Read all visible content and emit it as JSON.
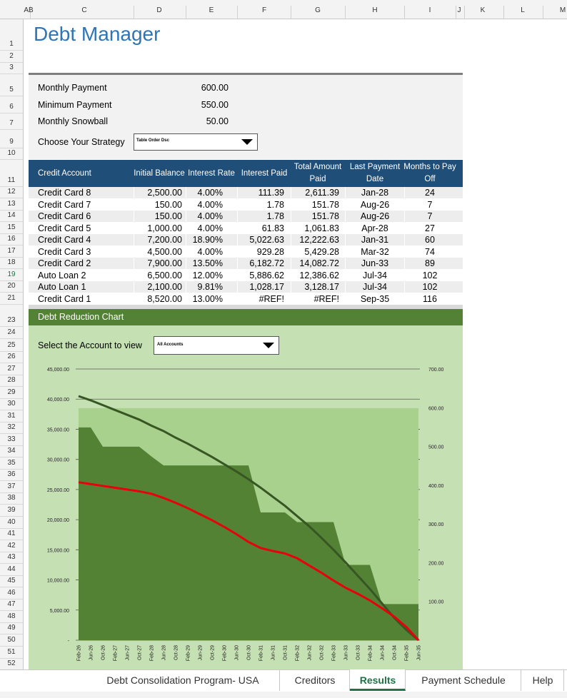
{
  "header": {
    "title": "Debt Manager"
  },
  "column_headers": [
    "AB",
    "C",
    "D",
    "E",
    "F",
    "G",
    "H",
    "I",
    "J",
    "K",
    "L",
    "M"
  ],
  "row_numbers": [
    1,
    2,
    3,
    5,
    6,
    7,
    9,
    10,
    11,
    12,
    13,
    14,
    15,
    16,
    17,
    18,
    19,
    20,
    21,
    23,
    24,
    25,
    26,
    27,
    28,
    29,
    30,
    31,
    32,
    33,
    34,
    35,
    36,
    37,
    38,
    39,
    40,
    41,
    42,
    43,
    44,
    45,
    46,
    47,
    48,
    49,
    50,
    51,
    52
  ],
  "settings": [
    {
      "label": "Monthly Payment",
      "value": "600.00"
    },
    {
      "label": "Minimum Payment",
      "value": "550.00"
    },
    {
      "label": "Monthly Snowball",
      "value": "50.00"
    }
  ],
  "strategy": {
    "label": "Choose Your Strategy",
    "selected": "Table Order Dsc"
  },
  "table": {
    "columns": [
      "Credit Account",
      "Initial Balance",
      "Interest Rate",
      "Interest Paid",
      "Total Amount Paid",
      "Last Payment Date",
      "Months to Pay Off"
    ],
    "rows": [
      [
        "Credit Card 8",
        "2,500.00",
        "4.00%",
        "111.39",
        "2,611.39",
        "Jan-28",
        "24"
      ],
      [
        "Credit Card 7",
        "150.00",
        "4.00%",
        "1.78",
        "151.78",
        "Aug-26",
        "7"
      ],
      [
        "Credit Card 6",
        "150.00",
        "4.00%",
        "1.78",
        "151.78",
        "Aug-26",
        "7"
      ],
      [
        "Credit Card 5",
        "1,000.00",
        "4.00%",
        "61.83",
        "1,061.83",
        "Apr-28",
        "27"
      ],
      [
        "Credit Card 4",
        "7,200.00",
        "18.90%",
        "5,022.63",
        "12,222.63",
        "Jan-31",
        "60"
      ],
      [
        "Credit Card 3",
        "4,500.00",
        "4.00%",
        "929.28",
        "5,429.28",
        "Mar-32",
        "74"
      ],
      [
        "Credit Card 2",
        "7,900.00",
        "13.50%",
        "6,182.72",
        "14,082.72",
        "Jun-33",
        "89"
      ],
      [
        "Auto Loan 2",
        "6,500.00",
        "12.00%",
        "5,886.62",
        "12,386.62",
        "Jul-34",
        "102"
      ],
      [
        "Auto Loan 1",
        "2,100.00",
        "9.81%",
        "1,028.17",
        "3,128.17",
        "Jul-34",
        "102"
      ],
      [
        "Credit Card 1",
        "8,520.00",
        "13.00%",
        "#REF!",
        "#REF!",
        "Sep-35",
        "116"
      ]
    ]
  },
  "chart_section": {
    "title": "Debt Reduction Chart",
    "selector_label": "Select the Account to view",
    "selected": "All Accounts"
  },
  "chart_data": {
    "type": "line",
    "categories": [
      "Feb-26",
      "Jun-26",
      "Oct-26",
      "Feb-27",
      "Jun-27",
      "Oct-27",
      "Feb-28",
      "Jun-28",
      "Oct-28",
      "Feb-29",
      "Jun-29",
      "Oct-29",
      "Feb-30",
      "Jun-30",
      "Oct-30",
      "Feb-31",
      "Jun-31",
      "Oct-31",
      "Feb-32",
      "Jun-32",
      "Oct-32",
      "Feb-33",
      "Jun-33",
      "Oct-33",
      "Feb-34",
      "Jun-34",
      "Oct-34",
      "Feb-35",
      "Jun-35"
    ],
    "series": [
      {
        "kind": "area",
        "color": "#a9d18e",
        "values": [
          38500,
          38500,
          38500,
          38500,
          38500,
          38500,
          38500,
          38500,
          38500,
          38500,
          38500,
          38500,
          38500,
          38500,
          38500,
          38500,
          38500,
          38500,
          38500,
          38500,
          38500,
          38500,
          38500,
          38500,
          38500,
          38500,
          38500,
          38500,
          38500
        ]
      },
      {
        "kind": "area",
        "color": "#548235",
        "values": [
          35300,
          35300,
          32100,
          32100,
          32100,
          32100,
          30500,
          29000,
          29000,
          29000,
          29000,
          29000,
          29000,
          29000,
          29000,
          21200,
          21200,
          21200,
          19600,
          19600,
          19600,
          19600,
          12500,
          12500,
          12500,
          6000,
          6000,
          6000,
          6000
        ]
      },
      {
        "kind": "line",
        "color": "#375623",
        "values": [
          40500,
          39800,
          39000,
          38200,
          37400,
          36600,
          35600,
          34700,
          33600,
          32600,
          31500,
          30400,
          29200,
          28000,
          26700,
          25300,
          23800,
          22300,
          20600,
          18900,
          17000,
          15000,
          12900,
          10700,
          8500,
          6100,
          3700,
          1700,
          0
        ]
      },
      {
        "kind": "line",
        "color": "#e8000b",
        "values": [
          26200,
          25900,
          25600,
          25300,
          25000,
          24700,
          24300,
          23600,
          22800,
          21900,
          20900,
          19900,
          18800,
          17600,
          16300,
          15300,
          14800,
          14400,
          13600,
          12400,
          11200,
          9900,
          8700,
          7700,
          6600,
          5300,
          3900,
          2200,
          0
        ]
      }
    ],
    "ylim": [
      0,
      45000
    ],
    "yticks": [
      {
        "value": 0,
        "label": "-"
      },
      {
        "value": 5000,
        "label": "5,000.00"
      },
      {
        "value": 10000,
        "label": "10,000.00"
      },
      {
        "value": 15000,
        "label": "15,000.00"
      },
      {
        "value": 20000,
        "label": "20,000.00"
      },
      {
        "value": 25000,
        "label": "25,000.00"
      },
      {
        "value": 30000,
        "label": "30,000.00"
      },
      {
        "value": 35000,
        "label": "35,000.00"
      },
      {
        "value": 40000,
        "label": "40,000.00"
      },
      {
        "value": 45000,
        "label": "45,000.00"
      }
    ],
    "y2lim": [
      0,
      700
    ],
    "y2ticks": [
      {
        "value": 100,
        "label": "100.00"
      },
      {
        "value": 200,
        "label": "200.00"
      },
      {
        "value": 300,
        "label": "300.00"
      },
      {
        "value": 400,
        "label": "400.00"
      },
      {
        "value": 500,
        "label": "500.00"
      },
      {
        "value": 600,
        "label": "600.00"
      },
      {
        "value": 700,
        "label": "700.00"
      }
    ],
    "grid": true
  },
  "tabs": [
    "Debt Consolidation Program- USA",
    "Creditors",
    "Results",
    "Payment Schedule",
    "Help"
  ],
  "active_tab": 2
}
